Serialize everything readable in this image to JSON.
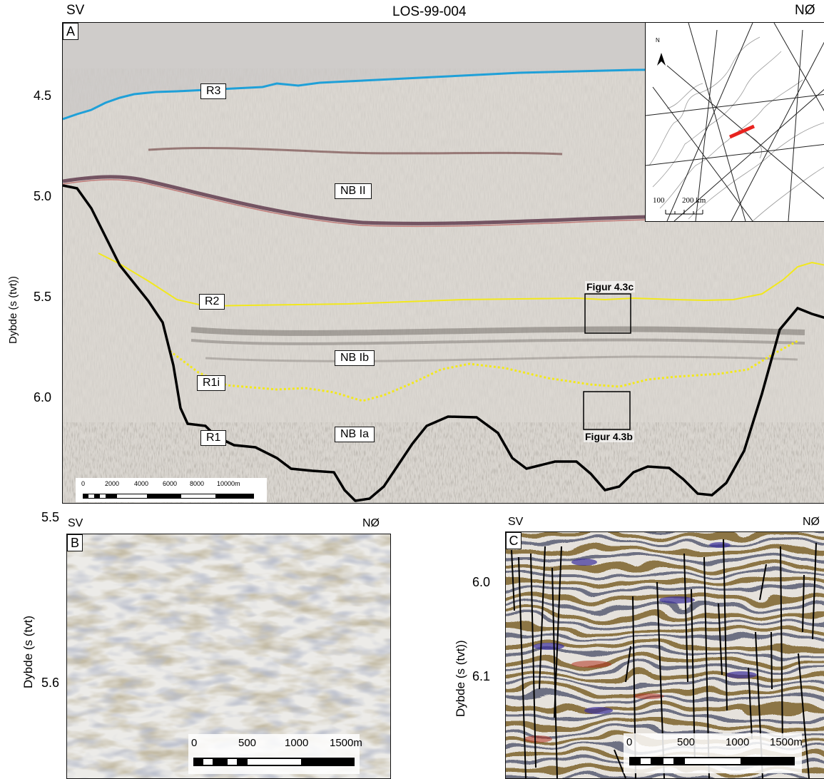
{
  "panel_a": {
    "left_label": "SV",
    "title": "LOS-99-004",
    "right_label": "NØ",
    "letter": "A",
    "y_axis_label": "Dybde (s (tvt))",
    "y_ticks": [
      "4.5",
      "5.0",
      "5.5",
      "6.0"
    ],
    "horizons": [
      "R3",
      "R2",
      "R1i",
      "R1"
    ],
    "units": [
      "NB II",
      "NB Ib",
      "NB Ia"
    ],
    "figure_boxes": [
      "Figur 4.3c",
      "Figur 4.3b"
    ],
    "scale_bar": [
      "0",
      "2000",
      "4000",
      "6000",
      "8000",
      "10000m"
    ],
    "inset_map": {
      "scale_labels": [
        "100",
        "200 km"
      ],
      "north": "N",
      "track_color": "#e8231f"
    },
    "horizon_colors": {
      "R3": "#1fa0d8",
      "R2": "#f2e81d",
      "R1i": "#f2e81d",
      "R1": "#000000"
    }
  },
  "panel_b": {
    "left_label": "SV",
    "right_label": "NØ",
    "letter": "B",
    "y_axis_label": "Dybde (s (tvt)",
    "y_ticks": [
      "5.5",
      "5.6"
    ],
    "scale_bar": [
      "0",
      "500",
      "1000",
      "1500m"
    ]
  },
  "panel_c": {
    "left_label": "SV",
    "right_label": "NØ",
    "letter": "C",
    "y_axis_label": "Dybde (s (tvt))",
    "y_ticks": [
      "6.0",
      "6.1"
    ],
    "scale_bar": [
      "0",
      "500",
      "1000",
      "1500m"
    ]
  }
}
